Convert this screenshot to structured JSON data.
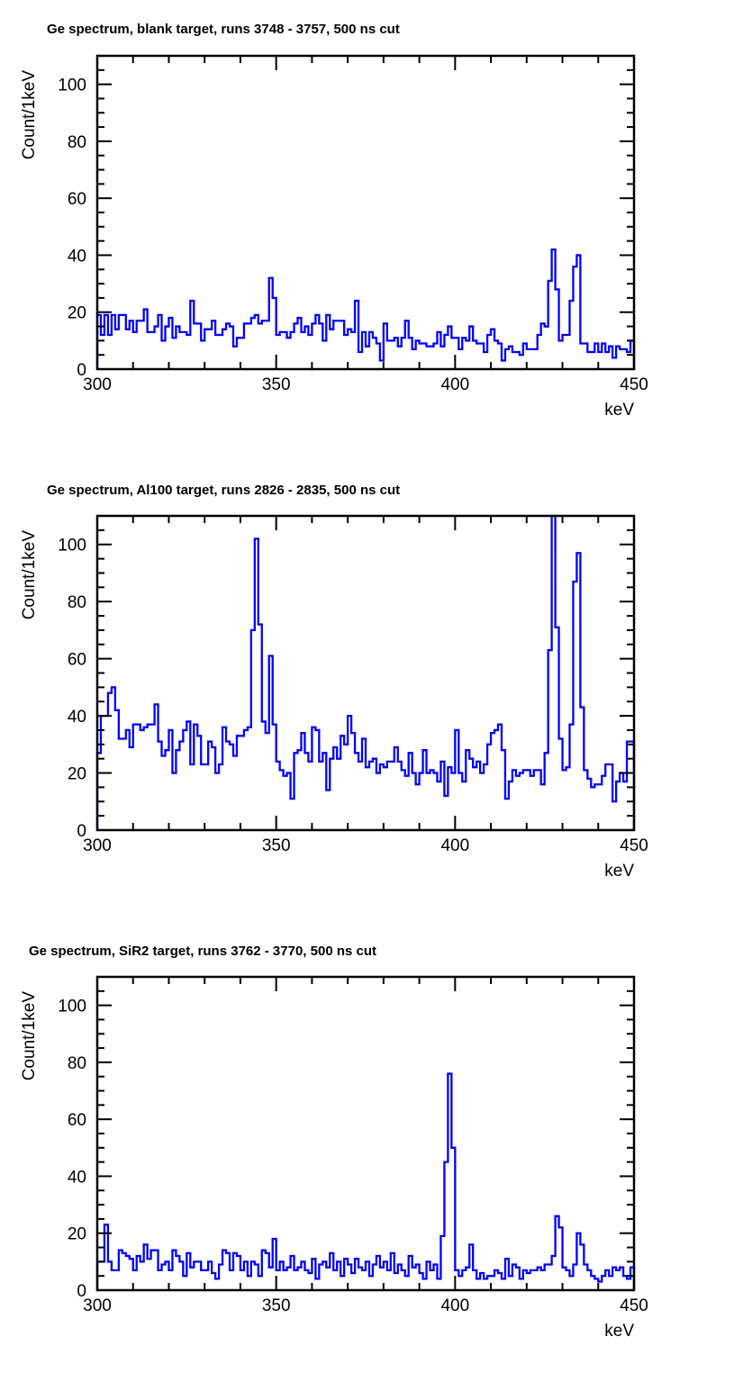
{
  "chart_data": [
    {
      "type": "histogram-step",
      "title": "Ge spectrum, blank target, runs 3748 - 3757, 500 ns cut",
      "xlabel": "keV",
      "ylabel": "Count/1keV",
      "xlim": [
        300,
        450
      ],
      "ylim": [
        0,
        110
      ],
      "bin_width": 1,
      "x_ticks": [
        "300",
        "350",
        "400",
        "450"
      ],
      "y_ticks": [
        "0",
        "20",
        "40",
        "60",
        "80",
        "100"
      ],
      "color": "#0000ff",
      "values": [
        19,
        12,
        19,
        12,
        19,
        14,
        19,
        19,
        14,
        17,
        13,
        17,
        17,
        21,
        13,
        13,
        15,
        19,
        10,
        15,
        18,
        11,
        15,
        13,
        13,
        12,
        24,
        16,
        16,
        10,
        14,
        14,
        17,
        12,
        12,
        14,
        16,
        15,
        8,
        11,
        11,
        16,
        16,
        18,
        19,
        16,
        17,
        17,
        32,
        25,
        12,
        13,
        13,
        11,
        13,
        16,
        18,
        13,
        15,
        12,
        16,
        19,
        16,
        10,
        19,
        14,
        17,
        17,
        17,
        12,
        14,
        13,
        24,
        6,
        13,
        8,
        13,
        11,
        9,
        3,
        16,
        10,
        10,
        11,
        8,
        11,
        17,
        11,
        7,
        10,
        9,
        9,
        8,
        8,
        9,
        13,
        8,
        12,
        15,
        11,
        11,
        7,
        11,
        10,
        15,
        10,
        9,
        9,
        6,
        12,
        14,
        10,
        9,
        3,
        7,
        8,
        6,
        6,
        5,
        9,
        7,
        7,
        7,
        12,
        16,
        15,
        31,
        42,
        28,
        10,
        12,
        12,
        24,
        36,
        40,
        9,
        9,
        6,
        6,
        9,
        6,
        9,
        6,
        8,
        4,
        8,
        7,
        7,
        6,
        10
      ]
    },
    {
      "type": "histogram-step",
      "title": "Ge spectrum, Al100 target, runs 2826 - 2835, 500 ns cut",
      "xlabel": "keV",
      "ylabel": "Count/1keV",
      "xlim": [
        300,
        450
      ],
      "ylim": [
        0,
        110
      ],
      "bin_width": 1,
      "x_ticks": [
        "300",
        "350",
        "400",
        "450"
      ],
      "y_ticks": [
        "0",
        "20",
        "40",
        "60",
        "80",
        "100"
      ],
      "color": "#0000ff",
      "values": [
        27,
        40,
        40,
        48,
        50,
        42,
        32,
        32,
        35,
        29,
        37,
        37,
        35,
        36,
        37,
        37,
        44,
        31,
        26,
        28,
        35,
        20,
        28,
        31,
        35,
        38,
        23,
        37,
        33,
        23,
        23,
        31,
        29,
        20,
        23,
        36,
        31,
        30,
        26,
        33,
        33,
        35,
        36,
        70,
        102,
        72,
        38,
        34,
        61,
        37,
        24,
        21,
        19,
        20,
        11,
        27,
        28,
        34,
        27,
        24,
        36,
        35,
        24,
        27,
        14,
        25,
        29,
        25,
        33,
        30,
        40,
        34,
        27,
        24,
        32,
        22,
        24,
        25,
        20,
        23,
        22,
        24,
        24,
        29,
        24,
        21,
        19,
        27,
        20,
        16,
        20,
        28,
        20,
        21,
        20,
        17,
        24,
        12,
        22,
        20,
        35,
        20,
        17,
        28,
        25,
        22,
        24,
        20,
        23,
        30,
        34,
        35,
        37,
        28,
        11,
        17,
        21,
        19,
        20,
        21,
        21,
        19,
        21,
        21,
        16,
        27,
        63,
        110,
        71,
        32,
        21,
        22,
        37,
        87,
        97,
        43,
        21,
        18,
        15,
        16,
        16,
        19,
        23,
        23,
        10,
        17,
        20,
        17,
        31,
        31
      ]
    },
    {
      "type": "histogram-step",
      "title": "Ge spectrum, SiR2 target, runs 3762 - 3770, 500 ns cut",
      "xlabel": "keV",
      "ylabel": "Count/1keV",
      "xlim": [
        300,
        450
      ],
      "ylim": [
        0,
        110
      ],
      "bin_width": 1,
      "x_ticks": [
        "300",
        "350",
        "400",
        "450"
      ],
      "y_ticks": [
        "0",
        "20",
        "40",
        "60",
        "80",
        "100"
      ],
      "color": "#0000ff",
      "values": [
        10,
        10,
        23,
        10,
        7,
        7,
        14,
        13,
        12,
        11,
        7,
        12,
        10,
        16,
        11,
        14,
        14,
        7,
        9,
        10,
        7,
        14,
        12,
        10,
        5,
        13,
        8,
        10,
        10,
        7,
        7,
        10,
        6,
        4,
        9,
        14,
        13,
        7,
        13,
        12,
        7,
        10,
        5,
        10,
        9,
        5,
        14,
        13,
        8,
        18,
        7,
        10,
        7,
        8,
        12,
        7,
        8,
        10,
        7,
        6,
        11,
        4,
        9,
        10,
        8,
        13,
        7,
        10,
        5,
        11,
        9,
        6,
        11,
        8,
        7,
        10,
        5,
        9,
        12,
        8,
        10,
        7,
        13,
        6,
        9,
        7,
        5,
        12,
        8,
        9,
        6,
        4,
        10,
        7,
        9,
        4,
        19,
        45,
        76,
        50,
        7,
        5,
        7,
        8,
        16,
        7,
        4,
        6,
        4,
        5,
        5,
        7,
        6,
        4,
        11,
        5,
        9,
        8,
        4,
        7,
        6,
        7,
        7,
        8,
        7,
        9,
        9,
        12,
        26,
        22,
        8,
        7,
        5,
        9,
        20,
        16,
        9,
        7,
        5,
        4,
        3,
        5,
        7,
        5,
        8,
        7,
        8,
        5,
        4,
        8
      ]
    }
  ]
}
